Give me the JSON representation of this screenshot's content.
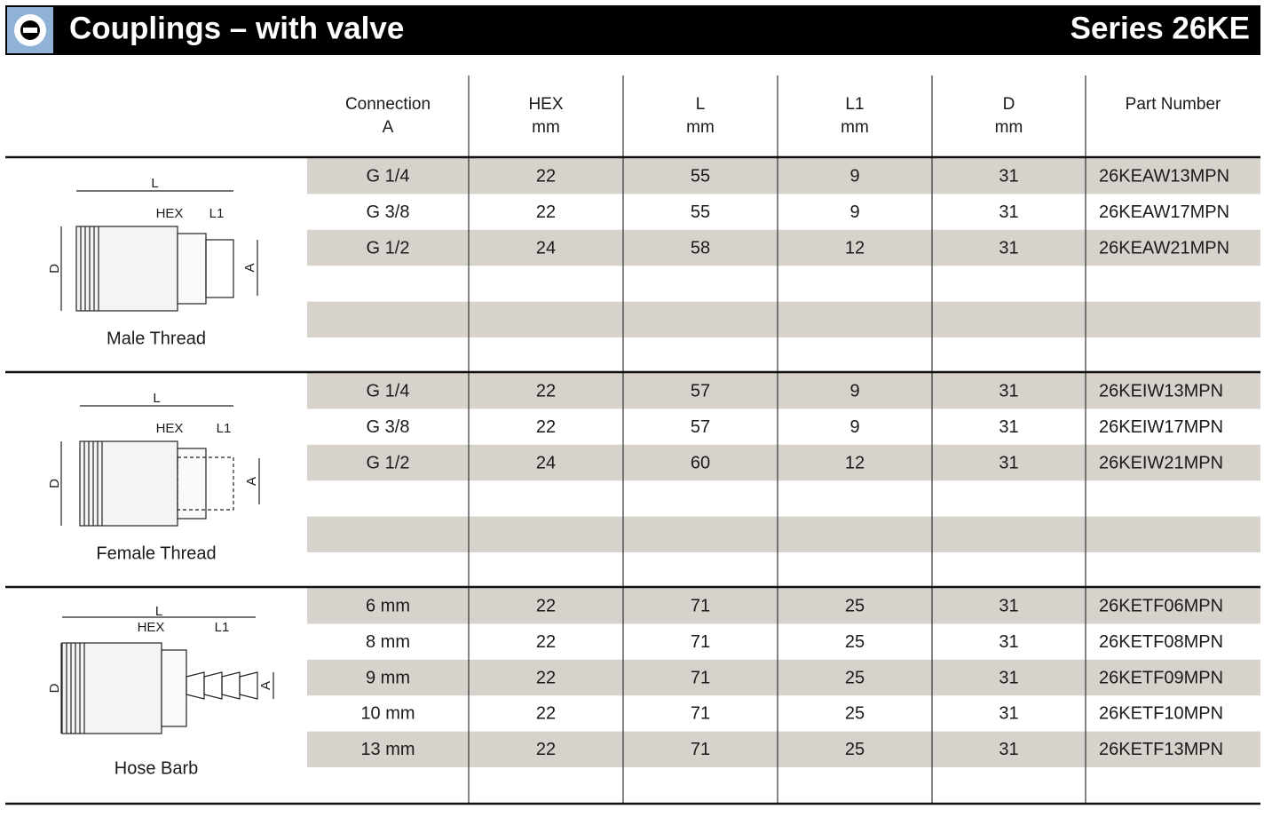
{
  "header": {
    "title": "Couplings – with valve",
    "series": "Series 26KE"
  },
  "table": {
    "columns": [
      [
        "Connection",
        "A"
      ],
      [
        "HEX",
        "mm"
      ],
      [
        "L",
        "mm"
      ],
      [
        "L1",
        "mm"
      ],
      [
        "D",
        "mm"
      ],
      [
        "Part Number"
      ]
    ],
    "sections": [
      {
        "caption": "Male Thread",
        "drawing_labels": {
          "length": "L",
          "hex": "HEX",
          "length1": "L1",
          "diameter": "D",
          "connection": "A"
        },
        "rows": [
          [
            "G 1/4",
            22,
            55,
            9,
            31,
            "26KEAW13MPN"
          ],
          [
            "G 3/8",
            22,
            55,
            9,
            31,
            "26KEAW17MPN"
          ],
          [
            "G 1/2",
            24,
            58,
            12,
            31,
            "26KEAW21MPN"
          ]
        ]
      },
      {
        "caption": "Female Thread",
        "drawing_labels": {
          "length": "L",
          "hex": "HEX",
          "length1": "L1",
          "diameter": "D",
          "connection": "A"
        },
        "rows": [
          [
            "G 1/4",
            22,
            57,
            9,
            31,
            "26KEIW13MPN"
          ],
          [
            "G 3/8",
            22,
            57,
            9,
            31,
            "26KEIW17MPN"
          ],
          [
            "G 1/2",
            24,
            60,
            12,
            31,
            "26KEIW21MPN"
          ]
        ]
      },
      {
        "caption": "Hose Barb",
        "drawing_labels": {
          "length": "L",
          "hex": "HEX",
          "length1": "L1",
          "diameter": "D",
          "connection": "A"
        },
        "rows": [
          [
            "6 mm",
            22,
            71,
            25,
            31,
            "26KETF06MPN"
          ],
          [
            "8 mm",
            22,
            71,
            25,
            31,
            "26KETF08MPN"
          ],
          [
            "9 mm",
            22,
            71,
            25,
            31,
            "26KETF09MPN"
          ],
          [
            "10 mm",
            22,
            71,
            25,
            31,
            "26KETF10MPN"
          ],
          [
            "13 mm",
            22,
            71,
            25,
            31,
            "26KETF13MPN"
          ]
        ]
      }
    ]
  }
}
